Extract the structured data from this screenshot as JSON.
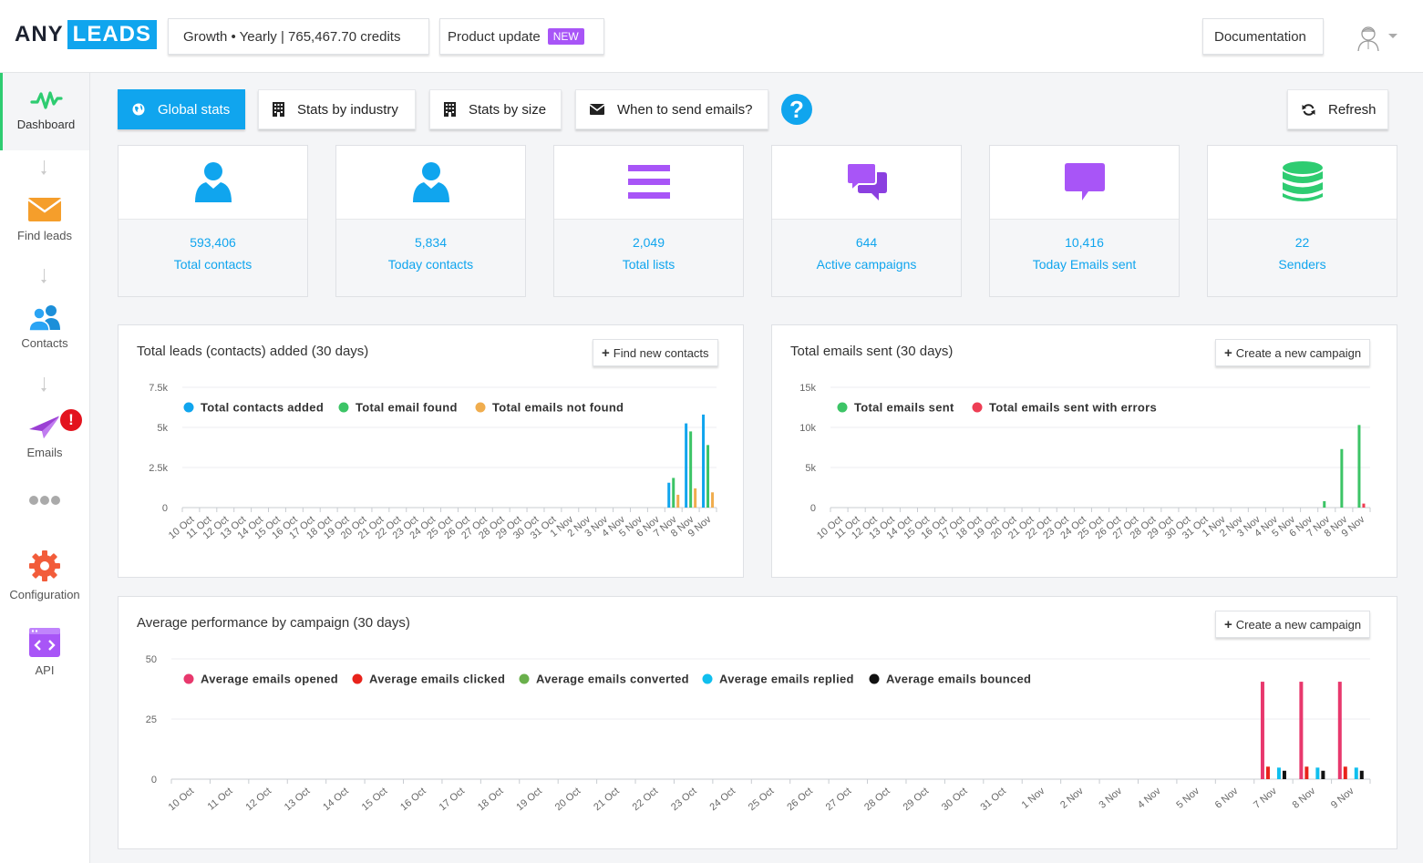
{
  "header": {
    "logo_any": "ANY",
    "logo_leads": "LEADS",
    "plan": "Growth • Yearly | 765,467.70 credits",
    "product_update": "Product update",
    "new_badge": "NEW",
    "documentation": "Documentation"
  },
  "sidebar": {
    "items": [
      {
        "label": "Dashboard",
        "icon": "pulse-icon"
      },
      {
        "label": "Find leads",
        "icon": "envelope-icon"
      },
      {
        "label": "Contacts",
        "icon": "users-icon"
      },
      {
        "label": "Emails",
        "icon": "paper-plane-icon",
        "alert": "!"
      },
      {
        "label": "",
        "icon": "more-dots-icon"
      },
      {
        "label": "Configuration",
        "icon": "gear-icon"
      },
      {
        "label": "API",
        "icon": "code-window-icon"
      }
    ]
  },
  "tabs": {
    "global": "Global stats",
    "industry": "Stats by industry",
    "size": "Stats by size",
    "when": "When to send emails?",
    "help": "?",
    "refresh": "Refresh"
  },
  "stats": [
    {
      "value": "593,406",
      "label": "Total contacts",
      "icon": "user-icon",
      "color": "#10a5ee"
    },
    {
      "value": "5,834",
      "label": "Today contacts",
      "icon": "user-icon",
      "color": "#10a5ee"
    },
    {
      "value": "2,049",
      "label": "Total lists",
      "icon": "list-icon",
      "color": "#a855f7"
    },
    {
      "value": "644",
      "label": "Active campaigns",
      "icon": "comments-icon",
      "color": "#a855f7"
    },
    {
      "value": "10,416",
      "label": "Today Emails sent",
      "icon": "comment-icon",
      "color": "#a855f7"
    },
    {
      "value": "22",
      "label": "Senders",
      "icon": "database-icon",
      "color": "#2ecc71"
    }
  ],
  "panels": {
    "leads_title": "Total leads (contacts) added (30 days)",
    "leads_button": "Find new contacts",
    "emails_title": "Total emails sent (30 days)",
    "emails_button": "Create a new campaign",
    "perf_title": "Average performance by campaign (30 days)",
    "perf_button": "Create a new campaign",
    "plus": "+"
  },
  "chart_data": [
    {
      "type": "bar",
      "title": "Total leads (contacts) added (30 days)",
      "categories": [
        "10 Oct",
        "11 Oct",
        "12 Oct",
        "13 Oct",
        "14 Oct",
        "15 Oct",
        "16 Oct",
        "17 Oct",
        "18 Oct",
        "19 Oct",
        "20 Oct",
        "21 Oct",
        "22 Oct",
        "23 Oct",
        "24 Oct",
        "25 Oct",
        "26 Oct",
        "27 Oct",
        "28 Oct",
        "29 Oct",
        "30 Oct",
        "31 Oct",
        "1 Nov",
        "2 Nov",
        "3 Nov",
        "4 Nov",
        "5 Nov",
        "6 Nov",
        "7 Nov",
        "8 Nov",
        "9 Nov"
      ],
      "yticks": [
        "0",
        "2.5k",
        "5k",
        "7.5k"
      ],
      "ylim": [
        0,
        7500
      ],
      "legend_position": "top-left",
      "grid": true,
      "series": [
        {
          "name": "Total contacts added",
          "color": "#10a5ee",
          "values": [
            0,
            0,
            0,
            0,
            0,
            0,
            0,
            0,
            0,
            0,
            0,
            0,
            0,
            0,
            0,
            0,
            0,
            0,
            0,
            0,
            0,
            0,
            0,
            0,
            0,
            0,
            0,
            0,
            1550,
            5250,
            5800
          ]
        },
        {
          "name": "Total email found",
          "color": "#3cc466",
          "values": [
            0,
            0,
            0,
            0,
            0,
            0,
            0,
            0,
            0,
            0,
            0,
            0,
            0,
            0,
            0,
            0,
            0,
            0,
            0,
            0,
            0,
            0,
            0,
            0,
            0,
            0,
            0,
            0,
            1850,
            4750,
            3900
          ]
        },
        {
          "name": "Total emails not found",
          "color": "#f0ad4e",
          "values": [
            0,
            0,
            0,
            0,
            0,
            0,
            0,
            0,
            0,
            0,
            0,
            0,
            0,
            0,
            0,
            0,
            0,
            0,
            0,
            0,
            0,
            0,
            0,
            0,
            0,
            0,
            0,
            0,
            800,
            1200,
            950
          ]
        }
      ]
    },
    {
      "type": "bar",
      "title": "Total emails sent (30 days)",
      "categories": [
        "10 Oct",
        "11 Oct",
        "12 Oct",
        "13 Oct",
        "14 Oct",
        "15 Oct",
        "16 Oct",
        "17 Oct",
        "18 Oct",
        "19 Oct",
        "20 Oct",
        "21 Oct",
        "22 Oct",
        "23 Oct",
        "24 Oct",
        "25 Oct",
        "26 Oct",
        "27 Oct",
        "28 Oct",
        "29 Oct",
        "30 Oct",
        "31 Oct",
        "1 Nov",
        "2 Nov",
        "3 Nov",
        "4 Nov",
        "5 Nov",
        "6 Nov",
        "7 Nov",
        "8 Nov",
        "9 Nov"
      ],
      "yticks": [
        "0",
        "5k",
        "10k",
        "15k"
      ],
      "ylim": [
        0,
        15000
      ],
      "legend_position": "top-left",
      "grid": true,
      "series": [
        {
          "name": "Total emails sent",
          "color": "#3cc466",
          "values": [
            0,
            0,
            0,
            0,
            0,
            0,
            0,
            0,
            0,
            0,
            0,
            0,
            0,
            0,
            0,
            0,
            0,
            0,
            0,
            0,
            0,
            0,
            0,
            0,
            0,
            0,
            0,
            0,
            800,
            7300,
            10300
          ]
        },
        {
          "name": "Total emails sent with errors",
          "color": "#ee3e54",
          "values": [
            0,
            0,
            0,
            0,
            0,
            0,
            0,
            0,
            0,
            0,
            0,
            0,
            0,
            0,
            0,
            0,
            0,
            0,
            0,
            0,
            0,
            0,
            0,
            0,
            0,
            0,
            0,
            0,
            0,
            0,
            500
          ]
        }
      ]
    },
    {
      "type": "bar",
      "title": "Average performance by campaign (30 days)",
      "categories": [
        "10 Oct",
        "11 Oct",
        "12 Oct",
        "13 Oct",
        "14 Oct",
        "15 Oct",
        "16 Oct",
        "17 Oct",
        "18 Oct",
        "19 Oct",
        "20 Oct",
        "21 Oct",
        "22 Oct",
        "23 Oct",
        "24 Oct",
        "25 Oct",
        "26 Oct",
        "27 Oct",
        "28 Oct",
        "29 Oct",
        "30 Oct",
        "31 Oct",
        "1 Nov",
        "2 Nov",
        "3 Nov",
        "4 Nov",
        "5 Nov",
        "6 Nov",
        "7 Nov",
        "8 Nov",
        "9 Nov"
      ],
      "yticks": [
        "0",
        "25",
        "50"
      ],
      "ylim": [
        0,
        50
      ],
      "legend_position": "top-left",
      "grid": true,
      "series": [
        {
          "name": "Average emails opened",
          "color": "#e8386d",
          "values": [
            0,
            0,
            0,
            0,
            0,
            0,
            0,
            0,
            0,
            0,
            0,
            0,
            0,
            0,
            0,
            0,
            0,
            0,
            0,
            0,
            0,
            0,
            0,
            0,
            0,
            0,
            0,
            0,
            40.5,
            40.5,
            40.5
          ]
        },
        {
          "name": "Average emails clicked",
          "color": "#e8231b",
          "values": [
            0,
            0,
            0,
            0,
            0,
            0,
            0,
            0,
            0,
            0,
            0,
            0,
            0,
            0,
            0,
            0,
            0,
            0,
            0,
            0,
            0,
            0,
            0,
            0,
            0,
            0,
            0,
            0,
            5.2,
            5.2,
            5.2
          ]
        },
        {
          "name": "Average emails converted",
          "color": "#6ab04c",
          "values": [
            0,
            0,
            0,
            0,
            0,
            0,
            0,
            0,
            0,
            0,
            0,
            0,
            0,
            0,
            0,
            0,
            0,
            0,
            0,
            0,
            0,
            0,
            0,
            0,
            0,
            0,
            0,
            0,
            0,
            0,
            0
          ]
        },
        {
          "name": "Average emails replied",
          "color": "#10bfee",
          "values": [
            0,
            0,
            0,
            0,
            0,
            0,
            0,
            0,
            0,
            0,
            0,
            0,
            0,
            0,
            0,
            0,
            0,
            0,
            0,
            0,
            0,
            0,
            0,
            0,
            0,
            0,
            0,
            0,
            4.8,
            4.8,
            4.8
          ]
        },
        {
          "name": "Average emails bounced",
          "color": "#111111",
          "values": [
            0,
            0,
            0,
            0,
            0,
            0,
            0,
            0,
            0,
            0,
            0,
            0,
            0,
            0,
            0,
            0,
            0,
            0,
            0,
            0,
            0,
            0,
            0,
            0,
            0,
            0,
            0,
            0,
            3.5,
            3.5,
            3.5
          ]
        }
      ]
    }
  ]
}
